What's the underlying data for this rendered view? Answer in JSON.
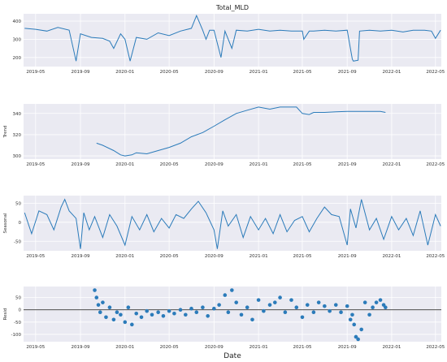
{
  "figure": {
    "title": "Total_MLD",
    "xlabel": "Date",
    "tick_labels": [
      "2019-05",
      "2019-09",
      "2020-01",
      "2020-05",
      "2020-09",
      "2021-01",
      "2021-05",
      "2021-09",
      "2022-01",
      "2022-05"
    ]
  },
  "colors": {
    "line": "#2b7bba",
    "plot_bg": "#eaeaf2",
    "grid": "#ffffff",
    "zero_line": "#333333"
  },
  "chart_data": [
    {
      "type": "line",
      "ylabel": "",
      "title": "Total_MLD",
      "xlim": [
        "2019-03-29",
        "2022-05-17"
      ],
      "ylim": [
        150,
        440
      ],
      "yticks": [
        200,
        300,
        400
      ],
      "series": [
        {
          "x": [
            "2019-04-01",
            "2019-05-01",
            "2019-06-01",
            "2019-07-01",
            "2019-08-01",
            "2019-08-20",
            "2019-09-01",
            "2019-10-01",
            "2019-11-01",
            "2019-11-20",
            "2019-12-01",
            "2019-12-20",
            "2020-01-01",
            "2020-01-15",
            "2020-02-01",
            "2020-03-01",
            "2020-04-01",
            "2020-05-01",
            "2020-06-01",
            "2020-07-01",
            "2020-07-15",
            "2020-08-01",
            "2020-08-10",
            "2020-08-20",
            "2020-09-01",
            "2020-09-20",
            "2020-10-01",
            "2020-10-20",
            "2020-11-01",
            "2020-12-01",
            "2021-01-01",
            "2021-02-01",
            "2021-03-01",
            "2021-04-01",
            "2021-05-01",
            "2021-05-05",
            "2021-05-20",
            "2021-06-01",
            "2021-07-01",
            "2021-08-01",
            "2021-09-01",
            "2021-09-15",
            "2021-09-18",
            "2021-10-01",
            "2021-10-05",
            "2021-11-01",
            "2021-12-01",
            "2022-01-01",
            "2022-02-01",
            "2022-03-01",
            "2022-04-01",
            "2022-04-20",
            "2022-05-01",
            "2022-05-15"
          ],
          "y": [
            360,
            355,
            345,
            365,
            350,
            180,
            330,
            310,
            305,
            290,
            250,
            330,
            300,
            180,
            310,
            300,
            335,
            320,
            345,
            360,
            430,
            350,
            300,
            350,
            350,
            200,
            345,
            250,
            350,
            345,
            355,
            345,
            350,
            345,
            345,
            300,
            345,
            345,
            350,
            345,
            350,
            190,
            180,
            185,
            345,
            350,
            345,
            350,
            340,
            350,
            350,
            345,
            305,
            350
          ]
        }
      ]
    },
    {
      "type": "line",
      "ylabel": "Trend",
      "xlim": [
        "2019-03-29",
        "2022-05-17"
      ],
      "ylim": [
        297,
        349
      ],
      "yticks": [
        300,
        320,
        340
      ],
      "series": [
        {
          "x": [
            "2019-10-15",
            "2019-11-01",
            "2019-12-01",
            "2019-12-20",
            "2020-01-01",
            "2020-01-20",
            "2020-02-01",
            "2020-03-01",
            "2020-04-01",
            "2020-05-01",
            "2020-06-01",
            "2020-07-01",
            "2020-08-01",
            "2020-09-01",
            "2020-10-01",
            "2020-11-01",
            "2020-12-01",
            "2021-01-01",
            "2021-02-01",
            "2021-03-01",
            "2021-04-01",
            "2021-04-15",
            "2021-05-01",
            "2021-05-20",
            "2021-06-01",
            "2021-07-01",
            "2021-08-01",
            "2021-09-01",
            "2021-10-01",
            "2021-11-01",
            "2021-12-01",
            "2021-12-15"
          ],
          "y": [
            312,
            310,
            305,
            301,
            300,
            301,
            303,
            302,
            305,
            308,
            312,
            318,
            322,
            328,
            334,
            340,
            343,
            346,
            344,
            346,
            346,
            346,
            340,
            339,
            341,
            341,
            341.5,
            342,
            342,
            342,
            342,
            341
          ]
        }
      ]
    },
    {
      "type": "line",
      "ylabel": "Seasonal",
      "xlim": [
        "2019-03-29",
        "2022-05-17"
      ],
      "ylim": [
        -75,
        70
      ],
      "yticks": [
        -50,
        0,
        50
      ],
      "series": [
        {
          "x": [
            "2019-04-01",
            "2019-04-20",
            "2019-05-10",
            "2019-06-01",
            "2019-06-20",
            "2019-07-10",
            "2019-07-20",
            "2019-08-01",
            "2019-08-20",
            "2019-09-01",
            "2019-09-10",
            "2019-09-25",
            "2019-10-10",
            "2019-11-01",
            "2019-11-20",
            "2019-12-10",
            "2020-01-01",
            "2020-01-20",
            "2020-02-10",
            "2020-03-01",
            "2020-03-20",
            "2020-04-10",
            "2020-05-01",
            "2020-05-20",
            "2020-06-10",
            "2020-07-01",
            "2020-07-20",
            "2020-08-10",
            "2020-09-01",
            "2020-09-10",
            "2020-09-25",
            "2020-10-10",
            "2020-11-01",
            "2020-11-20",
            "2020-12-10",
            "2021-01-01",
            "2021-01-20",
            "2021-02-10",
            "2021-03-01",
            "2021-03-20",
            "2021-04-10",
            "2021-05-01",
            "2021-05-20",
            "2021-06-10",
            "2021-07-01",
            "2021-07-20",
            "2021-08-10",
            "2021-09-01",
            "2021-09-10",
            "2021-09-25",
            "2021-10-10",
            "2021-11-01",
            "2021-11-20",
            "2021-12-10",
            "2022-01-01",
            "2022-01-20",
            "2022-02-10",
            "2022-03-01",
            "2022-03-20",
            "2022-04-10",
            "2022-05-01",
            "2022-05-15"
          ],
          "y": [
            25,
            -30,
            30,
            20,
            -20,
            40,
            60,
            30,
            10,
            -70,
            25,
            -20,
            15,
            -40,
            20,
            -10,
            -60,
            15,
            -20,
            20,
            -25,
            10,
            -15,
            20,
            10,
            35,
            55,
            25,
            -20,
            -70,
            30,
            -10,
            20,
            -40,
            15,
            -20,
            10,
            -30,
            20,
            -25,
            5,
            15,
            -25,
            10,
            40,
            20,
            15,
            -60,
            35,
            -15,
            60,
            -20,
            10,
            -45,
            15,
            -20,
            10,
            -35,
            30,
            -60,
            20,
            -10
          ]
        }
      ]
    },
    {
      "type": "scatter",
      "ylabel": "Resid",
      "xlim": [
        "2019-03-29",
        "2022-05-17"
      ],
      "ylim": [
        -130,
        95
      ],
      "yticks": [
        -100,
        -50,
        0,
        50
      ],
      "zero_line": true,
      "series": [
        {
          "x": [
            "2019-10-10",
            "2019-10-15",
            "2019-10-20",
            "2019-10-25",
            "2019-11-01",
            "2019-11-10",
            "2019-11-20",
            "2019-12-01",
            "2019-12-10",
            "2019-12-20",
            "2020-01-01",
            "2020-01-10",
            "2020-01-20",
            "2020-02-01",
            "2020-02-15",
            "2020-03-01",
            "2020-03-15",
            "2020-04-01",
            "2020-04-15",
            "2020-05-01",
            "2020-05-15",
            "2020-06-01",
            "2020-06-15",
            "2020-07-01",
            "2020-07-15",
            "2020-08-01",
            "2020-08-15",
            "2020-09-01",
            "2020-09-15",
            "2020-10-01",
            "2020-10-10",
            "2020-10-20",
            "2020-11-01",
            "2020-11-15",
            "2020-12-01",
            "2020-12-15",
            "2021-01-01",
            "2021-01-15",
            "2021-02-01",
            "2021-02-15",
            "2021-03-01",
            "2021-03-15",
            "2021-04-01",
            "2021-04-15",
            "2021-05-01",
            "2021-05-15",
            "2021-06-01",
            "2021-06-15",
            "2021-07-01",
            "2021-07-15",
            "2021-08-01",
            "2021-08-15",
            "2021-09-01",
            "2021-09-10",
            "2021-09-15",
            "2021-09-20",
            "2021-09-25",
            "2021-10-01",
            "2021-10-10",
            "2021-10-20",
            "2021-11-01",
            "2021-11-10",
            "2021-11-20",
            "2021-12-01",
            "2021-12-10",
            "2021-12-15"
          ],
          "y": [
            80,
            50,
            20,
            -10,
            30,
            -30,
            10,
            -40,
            -10,
            -20,
            -50,
            10,
            -60,
            -15,
            -30,
            -5,
            -20,
            -10,
            -25,
            -5,
            -15,
            0,
            -20,
            5,
            -10,
            10,
            -25,
            5,
            20,
            60,
            -10,
            80,
            30,
            -20,
            10,
            -40,
            40,
            -5,
            20,
            30,
            50,
            -10,
            40,
            10,
            -30,
            20,
            -10,
            30,
            15,
            -5,
            20,
            -10,
            15,
            -40,
            -20,
            -60,
            -110,
            -120,
            -80,
            30,
            -20,
            10,
            30,
            40,
            20,
            10
          ]
        }
      ]
    }
  ]
}
